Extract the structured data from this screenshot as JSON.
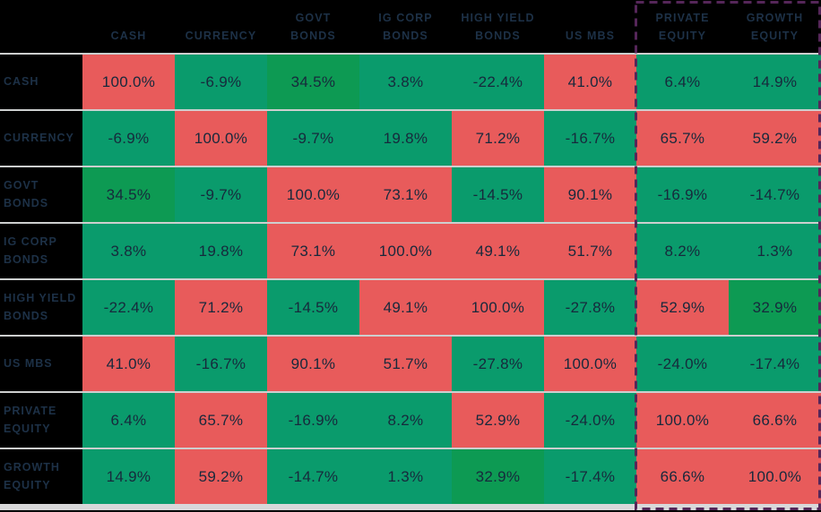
{
  "chart_data": {
    "type": "heatmap",
    "title": "",
    "categories": [
      "CASH",
      "CURRENCY",
      "GOVT BONDS",
      "IG CORP BONDS",
      "HIGH YIELD BONDS",
      "US MBS",
      "PRIVATE EQUITY",
      "GROWTH EQUITY"
    ],
    "unit": "%",
    "matrix": [
      [
        100.0,
        -6.9,
        34.5,
        3.8,
        -22.4,
        41.0,
        6.4,
        14.9
      ],
      [
        -6.9,
        100.0,
        -9.7,
        19.8,
        71.2,
        -16.7,
        65.7,
        59.2
      ],
      [
        34.5,
        -9.7,
        100.0,
        73.1,
        -14.5,
        90.1,
        -16.9,
        -14.7
      ],
      [
        3.8,
        19.8,
        73.1,
        100.0,
        49.1,
        51.7,
        8.2,
        1.3
      ],
      [
        -22.4,
        71.2,
        -14.5,
        49.1,
        100.0,
        -27.8,
        52.9,
        32.9
      ],
      [
        41.0,
        -16.7,
        90.1,
        51.7,
        -27.8,
        100.0,
        -24.0,
        -17.4
      ],
      [
        6.4,
        65.7,
        -16.9,
        8.2,
        52.9,
        -24.0,
        100.0,
        66.6
      ],
      [
        14.9,
        59.2,
        -14.7,
        1.3,
        32.9,
        -17.4,
        66.6,
        100.0
      ]
    ],
    "highlighted_columns": [
      "PRIVATE EQUITY",
      "GROWTH EQUITY"
    ],
    "legend": "none",
    "grid": "off",
    "color_rule": {
      "red_min": 40,
      "dark_green_min": 30
    }
  },
  "style": {
    "cell_red": "#E85B5B",
    "cell_green": "#0A9B6C",
    "cell_dark_green": "#0D9A53",
    "header_background": "#000000",
    "label_text": "#1D3147",
    "value_text": "#17293C",
    "row_separator": "#CDCFCF",
    "bottom_strip": "#D8D8DA",
    "highlight_border": "#552659"
  }
}
